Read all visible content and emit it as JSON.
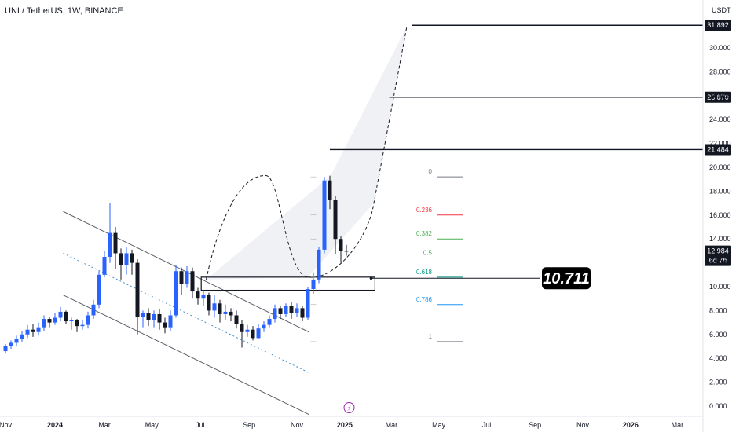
{
  "header": {
    "symbol_title": "UNI / TetherUS, 1W, BINANCE",
    "currency": "USDT"
  },
  "colors": {
    "up": "#2962ff",
    "down": "#131722",
    "channel": "#5d606b",
    "midline": "#4a90c8",
    "shade": "#eef0f4"
  },
  "chart_data": {
    "type": "candlestick",
    "ylim": [
      -0.3,
      32.7
    ],
    "y_ticks": [
      "0.000",
      "2.000",
      "4.000",
      "6.000",
      "8.000",
      "10.000",
      "12.000",
      "14.000",
      "16.000",
      "18.000",
      "20.000",
      "22.000",
      "24.000",
      "26.000",
      "28.000",
      "30.000"
    ],
    "x_ticks": [
      {
        "label": "Nov",
        "x": 0,
        "bold": false
      },
      {
        "label": "2024",
        "x": 9,
        "bold": true
      },
      {
        "label": "Mar",
        "x": 18,
        "bold": false
      },
      {
        "label": "May",
        "x": 26.6,
        "bold": false
      },
      {
        "label": "Jul",
        "x": 35.4,
        "bold": false
      },
      {
        "label": "Sep",
        "x": 44.3,
        "bold": false
      },
      {
        "label": "Nov",
        "x": 53,
        "bold": false
      },
      {
        "label": "2025",
        "x": 61.7,
        "bold": true
      },
      {
        "label": "Mar",
        "x": 70.2,
        "bold": false
      },
      {
        "label": "May",
        "x": 78.8,
        "bold": false
      },
      {
        "label": "Jul",
        "x": 87.5,
        "bold": false
      },
      {
        "label": "Sep",
        "x": 96.3,
        "bold": false
      },
      {
        "label": "Nov",
        "x": 105,
        "bold": false
      },
      {
        "label": "2026",
        "x": 113.7,
        "bold": true
      },
      {
        "label": "Mar",
        "x": 122.2,
        "bold": false
      }
    ],
    "candles": [
      [
        4.6,
        5.0,
        4.4,
        5.2
      ],
      [
        5.0,
        5.3,
        4.8,
        5.5
      ],
      [
        5.3,
        5.6,
        5.0,
        5.9
      ],
      [
        5.6,
        6.0,
        5.4,
        6.3
      ],
      [
        6.0,
        6.4,
        5.7,
        6.8
      ],
      [
        6.4,
        6.2,
        5.8,
        6.9
      ],
      [
        6.2,
        6.6,
        5.9,
        7.0
      ],
      [
        6.6,
        7.3,
        6.3,
        7.6
      ],
      [
        7.3,
        7.0,
        6.6,
        7.5
      ],
      [
        7.0,
        7.4,
        6.8,
        7.8
      ],
      [
        7.4,
        7.9,
        7.1,
        8.3
      ],
      [
        7.9,
        7.1,
        6.9,
        8.0
      ],
      [
        7.1,
        7.2,
        6.4,
        7.4
      ],
      [
        7.2,
        6.7,
        6.2,
        7.3
      ],
      [
        6.7,
        6.8,
        6.4,
        7.2
      ],
      [
        6.8,
        7.6,
        6.5,
        7.9
      ],
      [
        7.6,
        8.5,
        7.3,
        8.9
      ],
      [
        8.5,
        11.0,
        8.2,
        11.3
      ],
      [
        11.0,
        12.5,
        10.8,
        13.0
      ],
      [
        12.5,
        14.5,
        12.0,
        17.0
      ],
      [
        14.5,
        12.8,
        11.5,
        15.0
      ],
      [
        12.8,
        11.8,
        10.6,
        13.2
      ],
      [
        11.8,
        12.8,
        11.0,
        13.3
      ],
      [
        12.8,
        12.0,
        11.0,
        13.1
      ],
      [
        12.0,
        7.5,
        6.0,
        12.3
      ],
      [
        7.5,
        7.8,
        6.6,
        8.0
      ],
      [
        7.8,
        7.2,
        6.7,
        8.2
      ],
      [
        7.2,
        7.7,
        6.6,
        8.0
      ],
      [
        7.7,
        7.0,
        6.4,
        8.1
      ],
      [
        7.0,
        6.6,
        6.1,
        7.4
      ],
      [
        6.6,
        7.6,
        6.3,
        8.0
      ],
      [
        7.6,
        11.3,
        7.4,
        11.8
      ],
      [
        11.3,
        10.2,
        9.3,
        11.6
      ],
      [
        10.2,
        11.3,
        9.9,
        11.7
      ],
      [
        11.3,
        9.6,
        9.0,
        11.6
      ],
      [
        9.6,
        9.0,
        8.5,
        9.9
      ],
      [
        9.0,
        9.3,
        8.4,
        9.7
      ],
      [
        9.3,
        8.0,
        7.6,
        9.5
      ],
      [
        8.0,
        8.6,
        7.4,
        9.3
      ],
      [
        8.6,
        7.7,
        7.0,
        8.9
      ],
      [
        7.7,
        7.9,
        7.2,
        8.5
      ],
      [
        7.9,
        7.6,
        7.1,
        8.2
      ],
      [
        7.6,
        6.9,
        6.5,
        8.0
      ],
      [
        6.9,
        6.2,
        4.9,
        7.2
      ],
      [
        6.2,
        6.4,
        5.8,
        6.8
      ],
      [
        6.4,
        5.7,
        5.5,
        6.7
      ],
      [
        5.7,
        6.5,
        5.6,
        6.9
      ],
      [
        6.5,
        6.8,
        6.2,
        7.1
      ],
      [
        6.8,
        7.3,
        6.6,
        7.6
      ],
      [
        7.3,
        8.2,
        7.0,
        8.5
      ],
      [
        8.2,
        7.7,
        7.3,
        8.4
      ],
      [
        7.7,
        8.4,
        7.5,
        8.6
      ],
      [
        8.4,
        7.8,
        7.3,
        8.7
      ],
      [
        7.8,
        8.2,
        7.5,
        8.6
      ],
      [
        8.2,
        7.4,
        7.1,
        8.4
      ],
      [
        7.4,
        9.8,
        7.2,
        10.0
      ],
      [
        9.8,
        10.6,
        9.4,
        11.2
      ],
      [
        10.6,
        13.1,
        10.3,
        13.3
      ],
      [
        13.1,
        18.9,
        12.8,
        19.2
      ],
      [
        18.9,
        17.3,
        16.5,
        19.3
      ],
      [
        17.3,
        14.0,
        12.7,
        17.6
      ],
      [
        14.0,
        13.0,
        12.0,
        14.2
      ],
      [
        13.0,
        12.98,
        12.6,
        13.5
      ]
    ],
    "current_price": "12.984",
    "countdown": "6d 7h",
    "price_levels": [
      {
        "label": "31.892",
        "value": 31.892,
        "x_start": 74
      },
      {
        "label": "25.870",
        "value": 25.87,
        "x_start": 69.8
      },
      {
        "label": "21.484",
        "value": 21.484,
        "x_start": 59
      }
    ],
    "fib_levels": [
      {
        "label": "0",
        "value": 19.2,
        "color": "#787b86"
      },
      {
        "label": "0.236",
        "value": 16.0,
        "color": "#f23645"
      },
      {
        "label": "0.382",
        "value": 14.0,
        "color": "#4caf50"
      },
      {
        "label": "0.5",
        "value": 12.4,
        "color": "#4caf50"
      },
      {
        "label": "0.618",
        "value": 10.8,
        "color": "#089981"
      },
      {
        "label": "0.786",
        "value": 8.5,
        "color": "#2196f3"
      },
      {
        "label": "1",
        "value": 5.4,
        "color": "#787b86"
      }
    ],
    "callout_value": "10.711",
    "zone": {
      "x_start": 35.6,
      "x_end": 67.2,
      "y_low": 9.7,
      "y_high": 10.8
    },
    "channel_upper": {
      "x1": 10.5,
      "y1": 16.3,
      "x2": 55.2,
      "y2": 6.2
    },
    "channel_lower": {
      "x1": 10.5,
      "y1": 9.3,
      "x2": 55.2,
      "y2": -0.7
    },
    "channel_mid": {
      "x1": 10.5,
      "y1": 12.8,
      "x2": 55.2,
      "y2": 2.8
    },
    "projection_path": [
      [
        36.5,
        10.6
      ],
      [
        44,
        18
      ],
      [
        47.5,
        19.3
      ],
      [
        51,
        14.5
      ],
      [
        55,
        10.8
      ],
      [
        62,
        12
      ],
      [
        67,
        17
      ],
      [
        73,
        31.8
      ]
    ]
  }
}
